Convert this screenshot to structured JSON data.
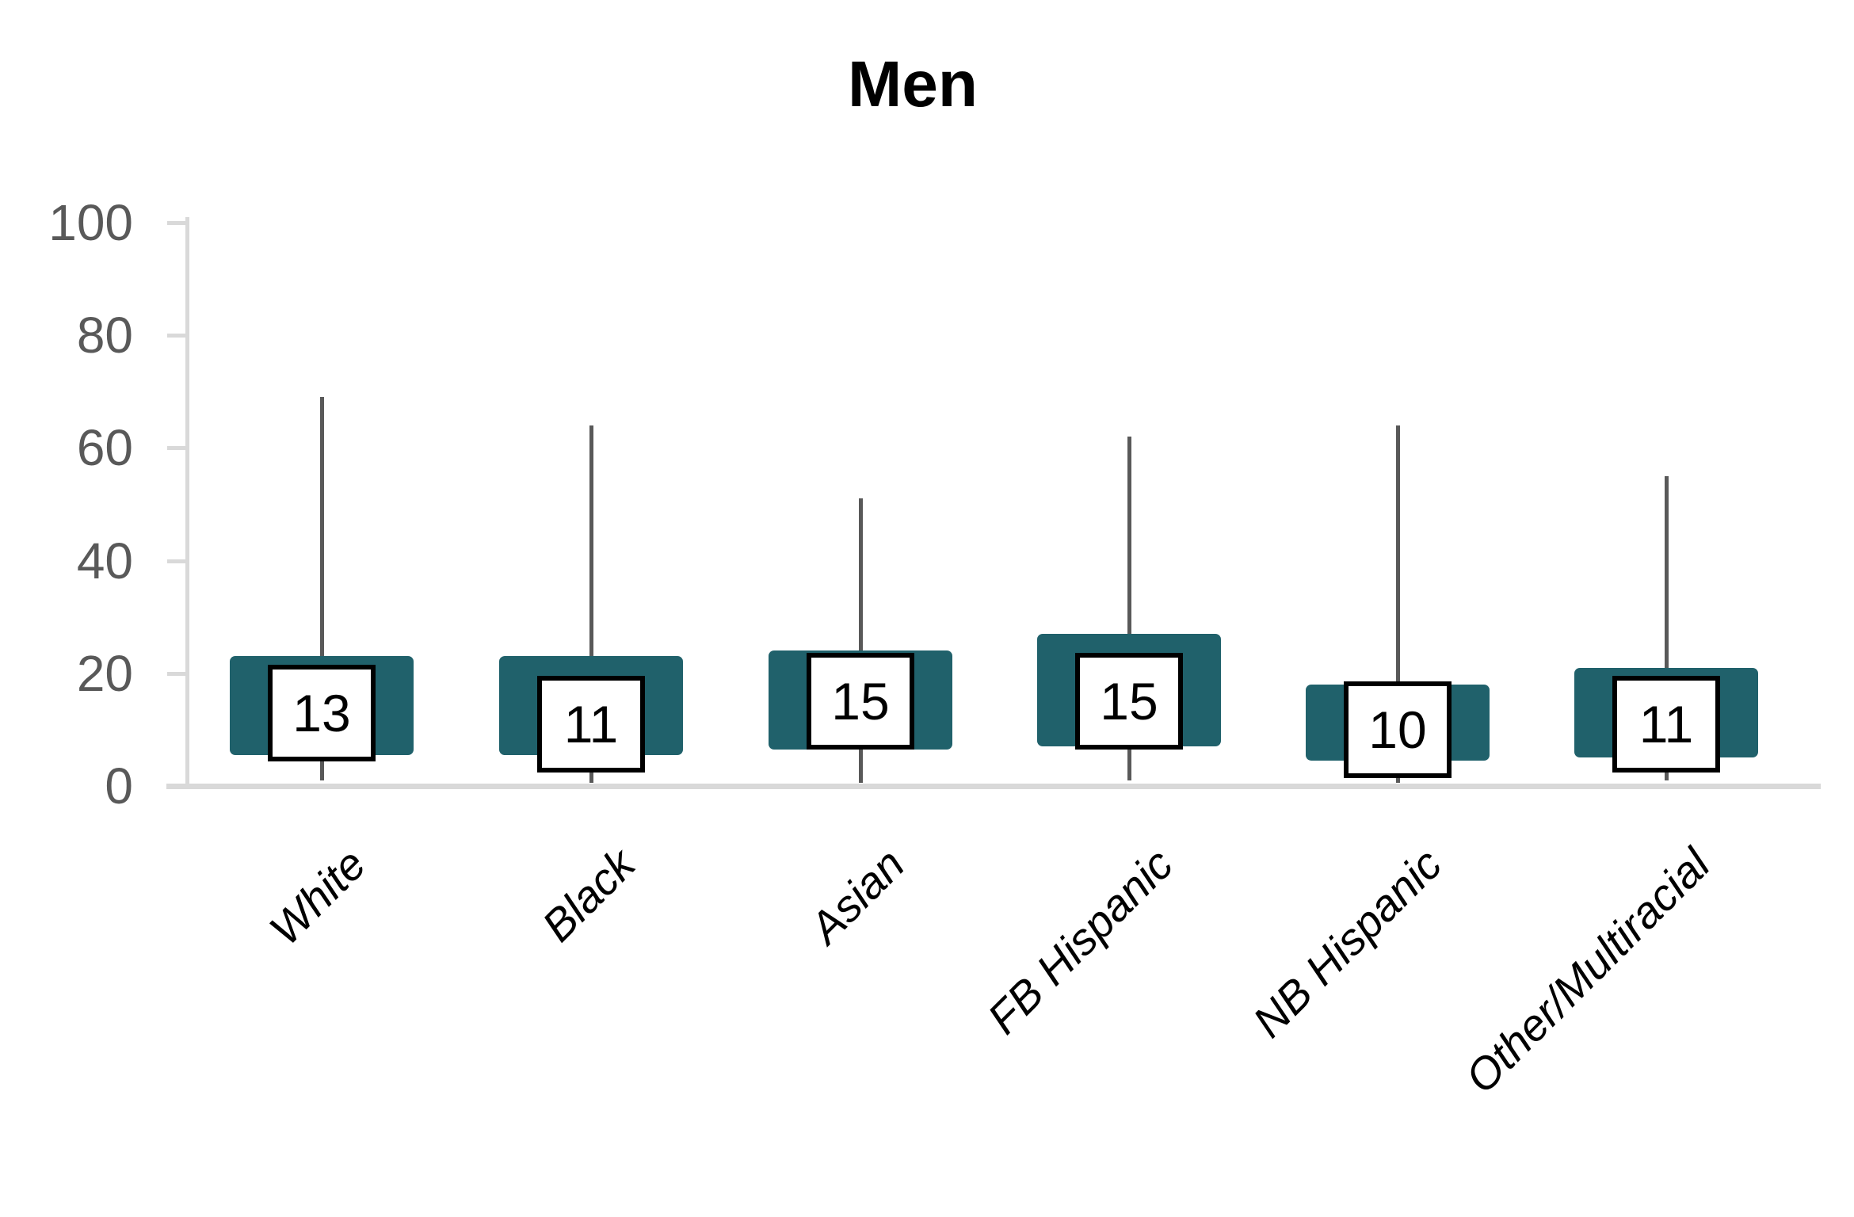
{
  "title": "Men",
  "colors": {
    "background": "#FFFFFF",
    "box": "#20616B",
    "whisker": "#595959",
    "axis": "#D9D9D9",
    "tick_label": "#595959",
    "category_label": "#000000",
    "median_text": "#000000",
    "label_box_bg": "#FFFFFF",
    "label_box_border": "#000000",
    "title_color": "#000000"
  },
  "chart_data": {
    "type": "box",
    "title": "Men",
    "categories": [
      "White",
      "Black",
      "Asian",
      "FB Hispanic",
      "NB Hispanic",
      "Other/Multiracial"
    ],
    "series": [
      {
        "name": "White",
        "min": 1,
        "q1": 5.5,
        "median": 13,
        "q3": 23,
        "max": 69
      },
      {
        "name": "Black",
        "min": 0.5,
        "q1": 5.5,
        "median": 11,
        "q3": 23,
        "max": 64
      },
      {
        "name": "Asian",
        "min": 0.5,
        "q1": 6.5,
        "median": 15,
        "q3": 24,
        "max": 51
      },
      {
        "name": "FB Hispanic",
        "min": 1,
        "q1": 7,
        "median": 15,
        "q3": 27,
        "max": 62
      },
      {
        "name": "NB Hispanic",
        "min": 0.5,
        "q1": 4.5,
        "median": 10,
        "q3": 18,
        "max": 64
      },
      {
        "name": "Other/Multiracial",
        "min": 1,
        "q1": 5,
        "median": 11,
        "q3": 21,
        "max": 55
      }
    ],
    "median_labels": [
      "13",
      "11",
      "15",
      "15",
      "10",
      "11"
    ],
    "ylim": [
      0,
      100
    ],
    "yticks": [
      0,
      20,
      40,
      60,
      80,
      100
    ],
    "ytick_labels": [
      "0",
      "20",
      "40",
      "60",
      "80",
      "100"
    ],
    "xlabel": "",
    "ylabel": "",
    "grid": false,
    "legend": false,
    "x_tick_rotation_deg": 45
  }
}
